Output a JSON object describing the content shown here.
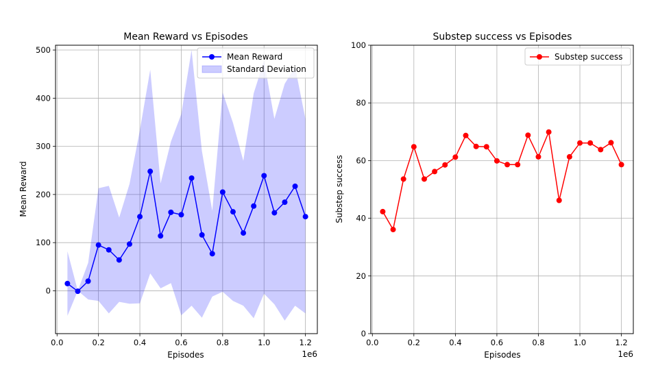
{
  "chart_data": [
    {
      "type": "line",
      "title": "Mean Reward vs Episodes",
      "xlabel": "Episodes",
      "ylabel": "Mean Reward",
      "x_offset_label": "1e6",
      "xlim": [
        -0.0075,
        1.2575
      ],
      "ylim": [
        -89,
        510
      ],
      "xticks": [
        0.0,
        0.2,
        0.4,
        0.6,
        0.8,
        1.0,
        1.2
      ],
      "xtick_labels": [
        "0.0",
        "0.2",
        "0.4",
        "0.6",
        "0.8",
        "1.0",
        "1.2"
      ],
      "yticks": [
        0,
        100,
        200,
        300,
        400,
        500
      ],
      "ytick_labels": [
        "0",
        "100",
        "200",
        "300",
        "400",
        "500"
      ],
      "grid": true,
      "legend_position": "upper right",
      "x": [
        0.05,
        0.1,
        0.15,
        0.2,
        0.25,
        0.3,
        0.35,
        0.4,
        0.45,
        0.5,
        0.55,
        0.6,
        0.65,
        0.7,
        0.75,
        0.8,
        0.85,
        0.9,
        0.95,
        1.0,
        1.05,
        1.1,
        1.15,
        1.2
      ],
      "series": [
        {
          "name": "Mean Reward",
          "color": "#0000ff",
          "marker": "circle",
          "values": [
            15,
            -1,
            20,
            95,
            85,
            64,
            97,
            154,
            248,
            114,
            163,
            158,
            234,
            116,
            77,
            205,
            164,
            120,
            176,
            239,
            162,
            184,
            217,
            154
          ]
        }
      ],
      "band": {
        "name": "Standard Deviation",
        "color": "#0000ff",
        "opacity": 0.2,
        "lower": [
          -52,
          0,
          -18,
          -21,
          -47,
          -23,
          -27,
          -26,
          36,
          5,
          16,
          -51,
          -31,
          -56,
          -12,
          -2,
          -21,
          -31,
          -57,
          -6,
          -28,
          -62,
          -31,
          -47
        ],
        "upper": [
          82,
          0,
          58,
          213,
          218,
          152,
          222,
          334,
          459,
          223,
          310,
          367,
          500,
          290,
          166,
          412,
          349,
          270,
          410,
          478,
          357,
          430,
          465,
          357
        ]
      }
    },
    {
      "type": "line",
      "title": "Substep success vs Episodes",
      "xlabel": "Episodes",
      "ylabel": "Substep success",
      "x_offset_label": "1e6",
      "xlim": [
        -0.0075,
        1.2575
      ],
      "ylim": [
        0,
        100
      ],
      "xticks": [
        0.0,
        0.2,
        0.4,
        0.6,
        0.8,
        1.0,
        1.2
      ],
      "xtick_labels": [
        "0.0",
        "0.2",
        "0.4",
        "0.6",
        "0.8",
        "1.0",
        "1.2"
      ],
      "yticks": [
        0,
        20,
        40,
        60,
        80,
        100
      ],
      "ytick_labels": [
        "0",
        "20",
        "40",
        "60",
        "80",
        "100"
      ],
      "grid": true,
      "legend_position": "upper right",
      "x": [
        0.05,
        0.1,
        0.15,
        0.2,
        0.25,
        0.3,
        0.35,
        0.4,
        0.45,
        0.5,
        0.55,
        0.6,
        0.65,
        0.7,
        0.75,
        0.8,
        0.85,
        0.9,
        0.95,
        1.0,
        1.05,
        1.1,
        1.15,
        1.2
      ],
      "series": [
        {
          "name": "Substep success",
          "color": "#ff0000",
          "marker": "circle",
          "values": [
            42.3,
            36.1,
            53.6,
            64.8,
            53.6,
            56.2,
            58.5,
            61.2,
            68.7,
            64.9,
            64.8,
            59.9,
            58.6,
            58.6,
            68.8,
            61.3,
            69.9,
            46.2,
            61.3,
            66.1,
            66.1,
            63.8,
            66.2,
            58.6
          ]
        }
      ]
    }
  ]
}
